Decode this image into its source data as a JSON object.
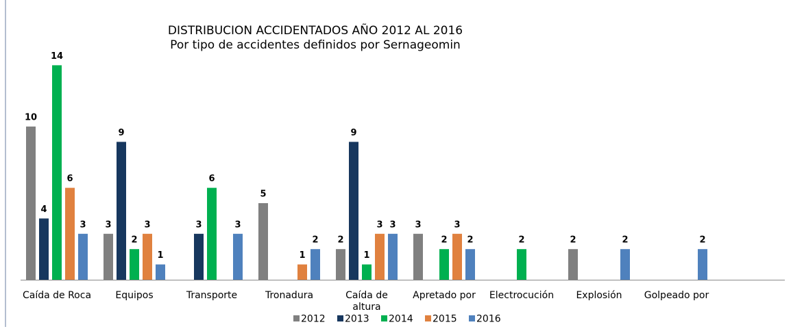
{
  "chart_data": {
    "type": "bar",
    "title": "DISTRIBUCION ACCIDENTADOS  AÑO 2012 AL  2016",
    "subtitle": "Por tipo de accidentes definidos por Sernageomin",
    "categories": [
      "Caída de Roca",
      "Equipos",
      "Transporte",
      "Tronadura",
      "Caída de\naltura",
      "Apretado por",
      "Electrocución",
      "Explosión",
      "Golpeado por"
    ],
    "series": [
      {
        "name": "2012",
        "color": "#808080",
        "values": [
          10,
          3,
          null,
          5,
          2,
          3,
          null,
          2,
          null
        ]
      },
      {
        "name": "2013",
        "color": "#17375e",
        "values": [
          4,
          9,
          3,
          null,
          9,
          null,
          null,
          null,
          null
        ]
      },
      {
        "name": "2014",
        "color": "#00b050",
        "values": [
          14,
          2,
          6,
          null,
          1,
          2,
          2,
          null,
          null
        ]
      },
      {
        "name": "2015",
        "color": "#e0813f",
        "values": [
          6,
          3,
          null,
          1,
          3,
          3,
          null,
          null,
          null
        ]
      },
      {
        "name": "2016",
        "color": "#4f81bd",
        "values": [
          3,
          1,
          3,
          2,
          3,
          2,
          null,
          2,
          2
        ]
      }
    ]
  }
}
